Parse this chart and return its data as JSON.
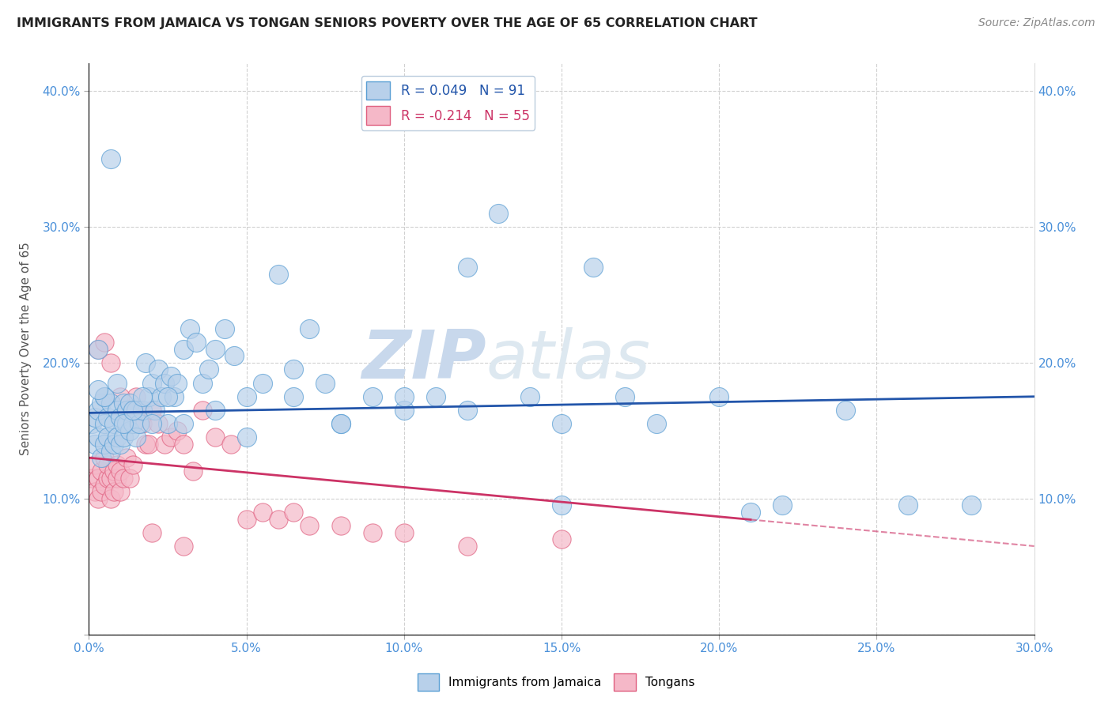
{
  "title": "IMMIGRANTS FROM JAMAICA VS TONGAN SENIORS POVERTY OVER THE AGE OF 65 CORRELATION CHART",
  "source": "Source: ZipAtlas.com",
  "ylabel": "Seniors Poverty Over the Age of 65",
  "xlim": [
    0.0,
    0.3
  ],
  "ylim": [
    0.0,
    0.42
  ],
  "xticks": [
    0.0,
    0.05,
    0.1,
    0.15,
    0.2,
    0.25,
    0.3
  ],
  "yticks": [
    0.0,
    0.1,
    0.2,
    0.3,
    0.4
  ],
  "legend_r1": "R = 0.049   N = 91",
  "legend_r2": "R = -0.214   N = 55",
  "legend_label1": "Immigrants from Jamaica",
  "legend_label2": "Tongans",
  "blue_fill": "#b8d0ea",
  "pink_fill": "#f5b8c8",
  "blue_edge": "#5a9fd4",
  "pink_edge": "#e06080",
  "blue_line": "#2255aa",
  "pink_line": "#cc3366",
  "watermark_zip": "ZIP",
  "watermark_atlas": "atlas",
  "watermark_color": "#c8d8ec",
  "blue_R": 0.049,
  "pink_R": -0.214,
  "blue_trend_start_y": 0.163,
  "blue_trend_end_y": 0.175,
  "pink_trend_start_y": 0.13,
  "pink_trend_end_y": 0.065,
  "blue_x": [
    0.001,
    0.002,
    0.002,
    0.003,
    0.003,
    0.004,
    0.004,
    0.005,
    0.005,
    0.005,
    0.006,
    0.006,
    0.007,
    0.007,
    0.008,
    0.008,
    0.009,
    0.009,
    0.01,
    0.01,
    0.011,
    0.011,
    0.012,
    0.012,
    0.013,
    0.013,
    0.014,
    0.015,
    0.015,
    0.016,
    0.017,
    0.018,
    0.019,
    0.02,
    0.021,
    0.022,
    0.023,
    0.024,
    0.025,
    0.026,
    0.027,
    0.028,
    0.03,
    0.032,
    0.034,
    0.036,
    0.038,
    0.04,
    0.043,
    0.046,
    0.05,
    0.055,
    0.06,
    0.065,
    0.07,
    0.075,
    0.08,
    0.09,
    0.1,
    0.11,
    0.12,
    0.13,
    0.14,
    0.15,
    0.16,
    0.17,
    0.18,
    0.2,
    0.21,
    0.22,
    0.24,
    0.26,
    0.28,
    0.003,
    0.005,
    0.007,
    0.009,
    0.011,
    0.014,
    0.017,
    0.02,
    0.025,
    0.03,
    0.04,
    0.05,
    0.065,
    0.08,
    0.1,
    0.12,
    0.15,
    0.003
  ],
  "blue_y": [
    0.155,
    0.14,
    0.16,
    0.145,
    0.165,
    0.13,
    0.17,
    0.14,
    0.155,
    0.175,
    0.145,
    0.16,
    0.135,
    0.17,
    0.14,
    0.155,
    0.145,
    0.165,
    0.14,
    0.16,
    0.145,
    0.17,
    0.155,
    0.165,
    0.15,
    0.17,
    0.155,
    0.145,
    0.165,
    0.155,
    0.165,
    0.2,
    0.175,
    0.185,
    0.165,
    0.195,
    0.175,
    0.185,
    0.155,
    0.19,
    0.175,
    0.185,
    0.21,
    0.225,
    0.215,
    0.185,
    0.195,
    0.21,
    0.225,
    0.205,
    0.175,
    0.185,
    0.265,
    0.195,
    0.225,
    0.185,
    0.155,
    0.175,
    0.165,
    0.175,
    0.27,
    0.31,
    0.175,
    0.155,
    0.27,
    0.175,
    0.155,
    0.175,
    0.09,
    0.095,
    0.165,
    0.095,
    0.095,
    0.21,
    0.175,
    0.35,
    0.185,
    0.155,
    0.165,
    0.175,
    0.155,
    0.175,
    0.155,
    0.165,
    0.145,
    0.175,
    0.155,
    0.175,
    0.165,
    0.095,
    0.18
  ],
  "pink_x": [
    0.001,
    0.002,
    0.002,
    0.003,
    0.003,
    0.004,
    0.004,
    0.005,
    0.005,
    0.006,
    0.006,
    0.007,
    0.007,
    0.008,
    0.008,
    0.009,
    0.009,
    0.01,
    0.01,
    0.011,
    0.012,
    0.013,
    0.014,
    0.015,
    0.016,
    0.017,
    0.018,
    0.019,
    0.02,
    0.022,
    0.024,
    0.026,
    0.028,
    0.03,
    0.033,
    0.036,
    0.04,
    0.045,
    0.05,
    0.055,
    0.06,
    0.065,
    0.07,
    0.08,
    0.09,
    0.1,
    0.12,
    0.15,
    0.003,
    0.005,
    0.007,
    0.01,
    0.013,
    0.02,
    0.03
  ],
  "pink_y": [
    0.115,
    0.125,
    0.105,
    0.115,
    0.1,
    0.12,
    0.105,
    0.11,
    0.13,
    0.115,
    0.125,
    0.1,
    0.115,
    0.12,
    0.105,
    0.115,
    0.125,
    0.105,
    0.12,
    0.115,
    0.13,
    0.115,
    0.125,
    0.175,
    0.165,
    0.155,
    0.14,
    0.14,
    0.165,
    0.155,
    0.14,
    0.145,
    0.15,
    0.14,
    0.12,
    0.165,
    0.145,
    0.14,
    0.085,
    0.09,
    0.085,
    0.09,
    0.08,
    0.08,
    0.075,
    0.075,
    0.065,
    0.07,
    0.21,
    0.215,
    0.2,
    0.175,
    0.165,
    0.075,
    0.065
  ]
}
